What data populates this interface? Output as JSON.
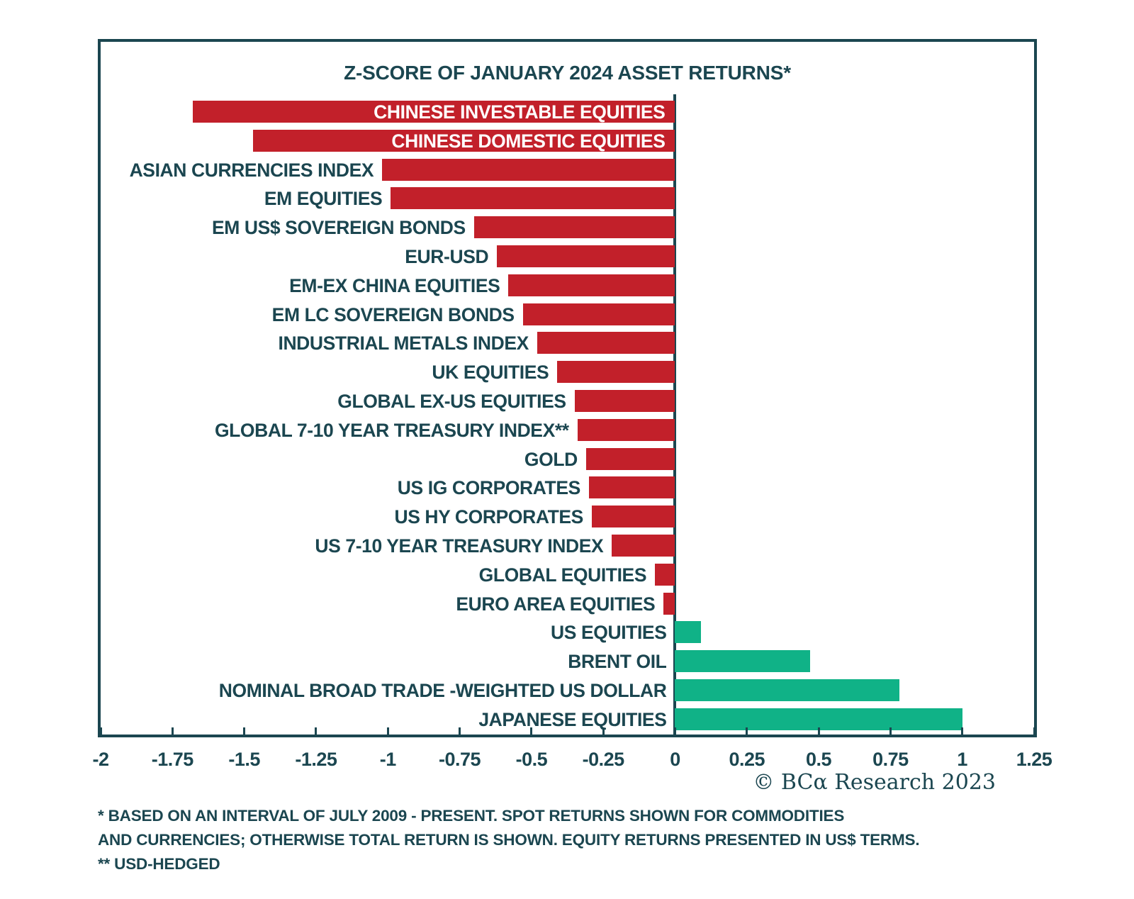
{
  "chart": {
    "title": "Z-SCORE OF JANUARY 2024 ASSET RETURNS*",
    "copyright": "© BCα Research 2023",
    "footnotes": [
      "* BASED ON AN INTERVAL OF JULY 2009 - PRESENT. SPOT RETURNS SHOWN FOR COMMODITIES",
      "AND CURRENCIES; OTHERWISE TOTAL RETURN IS SHOWN. EQUITY RETURNS PRESENTED IN US$ TERMS.",
      "** USD-HEDGED"
    ]
  },
  "chart_data": {
    "type": "bar",
    "orientation": "horizontal",
    "title": "Z-SCORE OF JANUARY 2024 ASSET RETURNS*",
    "xlabel": "",
    "ylabel": "",
    "xlim": [
      -2,
      1.25
    ],
    "grid": false,
    "categories": [
      "CHINESE INVESTABLE EQUITIES",
      "CHINESE DOMESTIC EQUITIES",
      "ASIAN CURRENCIES INDEX",
      "EM EQUITIES",
      "EM US$ SOVEREIGN BONDS",
      "EUR-USD",
      "EM-EX CHINA EQUITIES",
      "EM LC SOVEREIGN BONDS",
      "INDUSTRIAL METALS INDEX",
      "UK EQUITIES",
      "GLOBAL EX-US EQUITIES",
      "GLOBAL 7-10 YEAR TREASURY INDEX**",
      "GOLD",
      "US IG CORPORATES",
      "US HY CORPORATES",
      "US 7-10 YEAR TREASURY INDEX",
      "GLOBAL EQUITIES",
      "EURO AREA EQUITIES",
      "US EQUITIES",
      "BRENT OIL",
      "NOMINAL BROAD TRADE -WEIGHTED US DOLLAR",
      "JAPANESE EQUITIES"
    ],
    "values": [
      -1.68,
      -1.47,
      -1.02,
      -0.99,
      -0.7,
      -0.62,
      -0.58,
      -0.53,
      -0.48,
      -0.41,
      -0.35,
      -0.34,
      -0.31,
      -0.3,
      -0.29,
      -0.22,
      -0.07,
      -0.04,
      0.09,
      0.47,
      0.78,
      1.0
    ],
    "xticks": [
      -2,
      -1.75,
      -1.5,
      -1.25,
      -1,
      -0.75,
      -0.5,
      -0.25,
      0,
      0.25,
      0.5,
      0.75,
      1,
      1.25
    ],
    "xtick_labels": [
      "-2",
      "-1.75",
      "-1.5",
      "-1.25",
      "-1",
      "-0.75",
      "-0.5",
      "-0.25",
      "0",
      "0.25",
      "0.5",
      "0.75",
      "1",
      "1.25"
    ],
    "colors": {
      "negative": "#C2202A",
      "positive": "#10B287",
      "axis": "#1B4650",
      "text": "#1B4650"
    },
    "label_inside_threshold": -1.3
  }
}
